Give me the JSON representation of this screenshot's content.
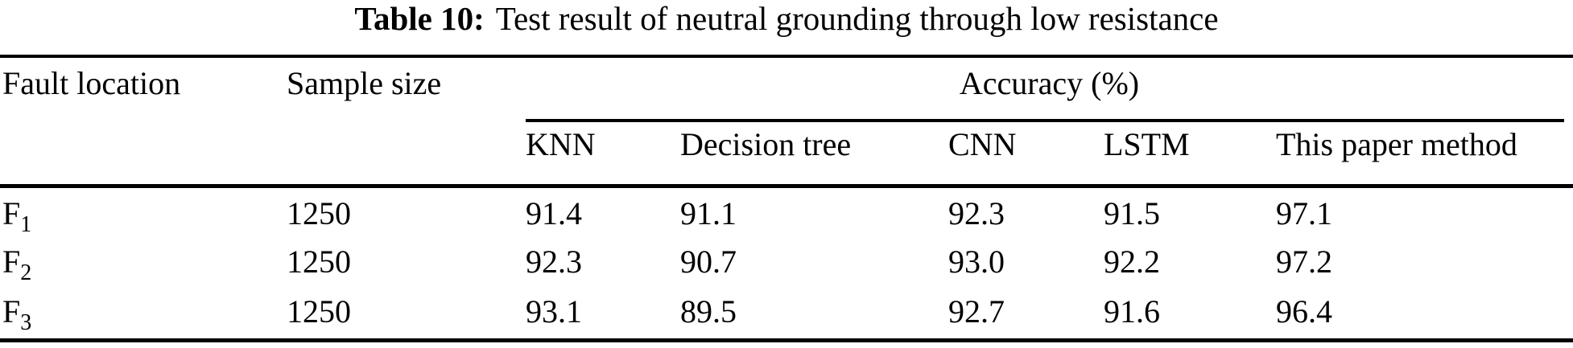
{
  "caption": {
    "label": "Table 10:",
    "text": "Test result of neutral grounding through low resistance"
  },
  "header": {
    "fault_location": "Fault location",
    "sample_size": "Sample size",
    "accuracy_group": "Accuracy (%)",
    "methods": [
      "KNN",
      "Decision tree",
      "CNN",
      "LSTM",
      "This paper method"
    ]
  },
  "rows": [
    {
      "fault": {
        "base": "F",
        "sub": "1"
      },
      "sample_size": "1250",
      "knn": "91.4",
      "decision_tree": "91.1",
      "cnn": "92.3",
      "lstm": "91.5",
      "this_paper_method": "97.1"
    },
    {
      "fault": {
        "base": "F",
        "sub": "2"
      },
      "sample_size": "1250",
      "knn": "92.3",
      "decision_tree": "90.7",
      "cnn": "93.0",
      "lstm": "92.2",
      "this_paper_method": "97.2"
    },
    {
      "fault": {
        "base": "F",
        "sub": "3"
      },
      "sample_size": "1250",
      "knn": "93.1",
      "decision_tree": "89.5",
      "cnn": "92.7",
      "lstm": "91.6",
      "this_paper_method": "96.4"
    }
  ],
  "colors": {
    "text": "#000000",
    "background": "#ffffff",
    "rule": "#000000"
  }
}
